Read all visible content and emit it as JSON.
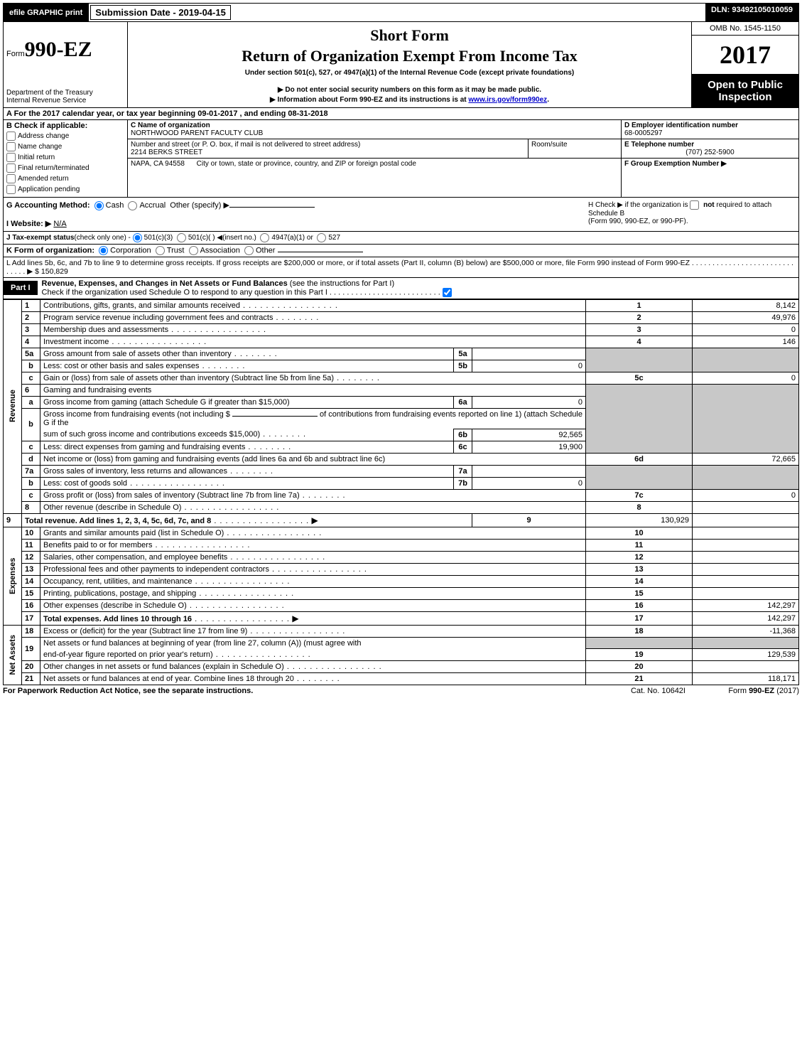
{
  "topbar": {
    "efile_label": "efile GRAPHIC print",
    "submission_label": "Submission Date - 2019-04-15",
    "dln": "DLN: 93492105010059"
  },
  "header": {
    "form_prefix": "Form",
    "form_number": "990-EZ",
    "dept1": "Department of the Treasury",
    "dept2": "Internal Revenue Service",
    "short_form": "Short Form",
    "return_title": "Return of Organization Exempt From Income Tax",
    "under_section": "Under section 501(c), 527, or 4947(a)(1) of the Internal Revenue Code (except private foundations)",
    "do_not": "▶ Do not enter social security numbers on this form as it may be made public.",
    "info_prefix": "▶ Information about Form 990-EZ and its instructions is at ",
    "info_link_text": "www.irs.gov/form990ez",
    "info_suffix": ".",
    "omb": "OMB No. 1545-1150",
    "year": "2017",
    "open1": "Open to Public",
    "open2": "Inspection"
  },
  "sectionA": {
    "a_text_pre": "A  For the 2017 calendar year, or tax year beginning ",
    "begin": "09-01-2017",
    "mid": " , and ending ",
    "end": "08-31-2018"
  },
  "sectionB": {
    "header": "B  Check if applicable:",
    "address_change": "Address change",
    "name_change": "Name change",
    "initial_return": "Initial return",
    "final_return": "Final return/terminated",
    "amended_return": "Amended return",
    "application_pending": "Application pending"
  },
  "sectionC": {
    "label": "C Name of organization",
    "org_name": "NORTHWOOD PARENT FACULTY CLUB",
    "street_label": "Number and street (or P. O. box, if mail is not delivered to street address)",
    "street": "2214 BERKS STREET",
    "room_label": "Room/suite",
    "city_label": "City or town, state or province, country, and ZIP or foreign postal code",
    "city": "NAPA, CA  94558"
  },
  "sectionD": {
    "label": "D Employer identification number",
    "value": "68-0005297"
  },
  "sectionE": {
    "label": "E Telephone number",
    "value": "(707) 252-5900"
  },
  "sectionF": {
    "label": "F Group Exemption Number    ▶",
    "value": ""
  },
  "sectionG": {
    "label": "G Accounting Method:",
    "cash": "Cash",
    "accrual": "Accrual",
    "other": "Other (specify) ▶"
  },
  "sectionH": {
    "text1": "H  Check ▶     if the organization is ",
    "not": "not",
    "text2": " required to attach Schedule B",
    "text3": "(Form 990, 990-EZ, or 990-PF)."
  },
  "sectionI": {
    "label": "I Website: ▶",
    "value": "N/A"
  },
  "sectionJ": {
    "label": "J Tax-exempt status",
    "sub": "(check only one) - ",
    "opt1": "501(c)(3)",
    "opt2": "501(c)(  ) ◀(insert no.)",
    "opt3": "4947(a)(1) or",
    "opt4": "527"
  },
  "sectionK": {
    "label": "K Form of organization:",
    "corp": "Corporation",
    "trust": "Trust",
    "assoc": "Association",
    "other": "Other"
  },
  "sectionL": {
    "text": "L Add lines 5b, 6c, and 7b to line 9 to determine gross receipts. If gross receipts are $200,000 or more, or if total assets (Part II, column (B) below) are $500,000 or more, file Form 990 instead of Form 990-EZ  .   .   .   .   .   .   .   .   .   .   .   .   .   .   .   .   .   .   .   .   .   .   .   .   .   .   .   .   .   . ▶ $ ",
    "value": "150,829"
  },
  "partI": {
    "part_label": "Part I",
    "title_bold": "Revenue, Expenses, and Changes in Net Assets or Fund Balances",
    "title_rest": " (see the instructions for Part I)",
    "check_line": "Check if the organization used Schedule O to respond to any question in this Part I .   .   .   .   .   .   .   .   .   .   .   .   .   .   .   .   .   .   .   .   .   .   .   .   .   .",
    "side_revenue": "Revenue",
    "side_expenses": "Expenses",
    "side_netassets": "Net Assets"
  },
  "lines": {
    "l1": {
      "no": "1",
      "desc": "Contributions, gifts, grants, and similar amounts received",
      "rno": "1",
      "val": "8,142"
    },
    "l2": {
      "no": "2",
      "desc": "Program service revenue including government fees and contracts",
      "rno": "2",
      "val": "49,976"
    },
    "l3": {
      "no": "3",
      "desc": "Membership dues and assessments",
      "rno": "3",
      "val": "0"
    },
    "l4": {
      "no": "4",
      "desc": "Investment income",
      "rno": "4",
      "val": "146"
    },
    "l5a": {
      "no": "5a",
      "desc": "Gross amount from sale of assets other than inventory",
      "mno": "5a",
      "mval": ""
    },
    "l5b": {
      "no": "b",
      "desc": "Less: cost or other basis and sales expenses",
      "mno": "5b",
      "mval": "0"
    },
    "l5c": {
      "no": "c",
      "desc": "Gain or (loss) from sale of assets other than inventory (Subtract line 5b from line 5a)",
      "rno": "5c",
      "val": "0"
    },
    "l6": {
      "no": "6",
      "desc": "Gaming and fundraising events"
    },
    "l6a": {
      "no": "a",
      "desc": "Gross income from gaming (attach Schedule G if greater than $15,000)",
      "mno": "6a",
      "mval": "0"
    },
    "l6b": {
      "no": "b",
      "desc1": "Gross income from fundraising events (not including $ ",
      "desc2": " of contributions from fundraising events reported on line 1) (attach Schedule G if the",
      "desc3": "sum of such gross income and contributions exceeds $15,000)",
      "mno": "6b",
      "mval": "92,565"
    },
    "l6c": {
      "no": "c",
      "desc": "Less: direct expenses from gaming and fundraising events",
      "mno": "6c",
      "mval": "19,900"
    },
    "l6d": {
      "no": "d",
      "desc": "Net income or (loss) from gaming and fundraising events (add lines 6a and 6b and subtract line 6c)",
      "rno": "6d",
      "val": "72,665"
    },
    "l7a": {
      "no": "7a",
      "desc": "Gross sales of inventory, less returns and allowances",
      "mno": "7a",
      "mval": ""
    },
    "l7b": {
      "no": "b",
      "desc": "Less: cost of goods sold",
      "mno": "7b",
      "mval": "0"
    },
    "l7c": {
      "no": "c",
      "desc": "Gross profit or (loss) from sales of inventory (Subtract line 7b from line 7a)",
      "rno": "7c",
      "val": "0"
    },
    "l8": {
      "no": "8",
      "desc": "Other revenue (describe in Schedule O)",
      "rno": "8",
      "val": ""
    },
    "l9": {
      "no": "9",
      "desc": "Total revenue. Add lines 1, 2, 3, 4, 5c, 6d, 7c, and 8",
      "rno": "9",
      "val": "130,929"
    },
    "l10": {
      "no": "10",
      "desc": "Grants and similar amounts paid (list in Schedule O)",
      "rno": "10",
      "val": ""
    },
    "l11": {
      "no": "11",
      "desc": "Benefits paid to or for members",
      "rno": "11",
      "val": ""
    },
    "l12": {
      "no": "12",
      "desc": "Salaries, other compensation, and employee benefits",
      "rno": "12",
      "val": ""
    },
    "l13": {
      "no": "13",
      "desc": "Professional fees and other payments to independent contractors",
      "rno": "13",
      "val": ""
    },
    "l14": {
      "no": "14",
      "desc": "Occupancy, rent, utilities, and maintenance",
      "rno": "14",
      "val": ""
    },
    "l15": {
      "no": "15",
      "desc": "Printing, publications, postage, and shipping",
      "rno": "15",
      "val": ""
    },
    "l16": {
      "no": "16",
      "desc": "Other expenses (describe in Schedule O)",
      "rno": "16",
      "val": "142,297"
    },
    "l17": {
      "no": "17",
      "desc": "Total expenses. Add lines 10 through 16",
      "rno": "17",
      "val": "142,297"
    },
    "l18": {
      "no": "18",
      "desc": "Excess or (deficit) for the year (Subtract line 17 from line 9)",
      "rno": "18",
      "val": "-11,368"
    },
    "l19": {
      "no": "19",
      "desc1": "Net assets or fund balances at beginning of year (from line 27, column (A)) (must agree with",
      "desc2": "end-of-year figure reported on prior year's return)",
      "rno": "19",
      "val": "129,539"
    },
    "l20": {
      "no": "20",
      "desc": "Other changes in net assets or fund balances (explain in Schedule O)",
      "rno": "20",
      "val": ""
    },
    "l21": {
      "no": "21",
      "desc": "Net assets or fund balances at end of year. Combine lines 18 through 20",
      "rno": "21",
      "val": "118,171"
    }
  },
  "footer": {
    "left": "For Paperwork Reduction Act Notice, see the separate instructions.",
    "mid": "Cat. No. 10642I",
    "right_pre": "Form ",
    "right_bold": "990-EZ",
    "right_suf": " (2017)"
  },
  "colors": {
    "black": "#000000",
    "white": "#ffffff",
    "shade": "#c8c8c8",
    "link": "#0000cc"
  }
}
